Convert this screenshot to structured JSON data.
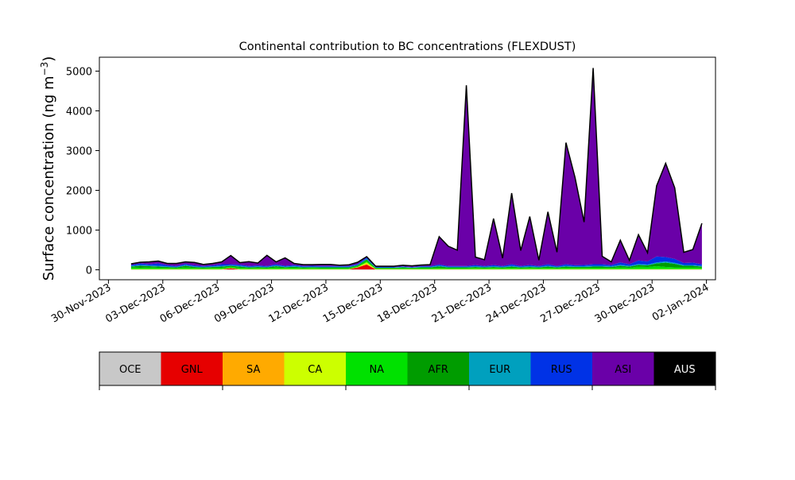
{
  "chart_data": {
    "type": "area",
    "title": "Continental contribution to BC concentrations (FLEXDUST)",
    "ylabel_main": "Surface concentration (ng m",
    "ylabel_sup": "−3",
    "ylabel_end": ")",
    "xlabel": "",
    "ylim": [
      -250,
      5350
    ],
    "yticks": [
      0,
      1000,
      2000,
      3000,
      4000,
      5000
    ],
    "x_axis_type": "date",
    "xlim": [
      "2023-11-29T12:00",
      "2024-01-02T12:00"
    ],
    "xticks": [
      {
        "date": "2023-11-30",
        "label": "30-Nov-2023"
      },
      {
        "date": "2023-12-03",
        "label": "03-Dec-2023"
      },
      {
        "date": "2023-12-06",
        "label": "06-Dec-2023"
      },
      {
        "date": "2023-12-09",
        "label": "09-Dec-2023"
      },
      {
        "date": "2023-12-12",
        "label": "12-Dec-2023"
      },
      {
        "date": "2023-12-15",
        "label": "15-Dec-2023"
      },
      {
        "date": "2023-12-18",
        "label": "18-Dec-2023"
      },
      {
        "date": "2023-12-21",
        "label": "21-Dec-2023"
      },
      {
        "date": "2023-12-24",
        "label": "24-Dec-2023"
      },
      {
        "date": "2023-12-27",
        "label": "27-Dec-2023"
      },
      {
        "date": "2023-12-30",
        "label": "30-Dec-2023"
      },
      {
        "date": "2024-01-02",
        "label": "02-Jan-2024"
      }
    ],
    "grid": false,
    "dates": [
      "2023-12-01T06:00",
      "2023-12-01T18:00",
      "2023-12-02T06:00",
      "2023-12-02T18:00",
      "2023-12-03T06:00",
      "2023-12-03T18:00",
      "2023-12-04T06:00",
      "2023-12-04T18:00",
      "2023-12-05T06:00",
      "2023-12-05T18:00",
      "2023-12-06T06:00",
      "2023-12-06T18:00",
      "2023-12-07T06:00",
      "2023-12-07T18:00",
      "2023-12-08T06:00",
      "2023-12-08T18:00",
      "2023-12-09T06:00",
      "2023-12-09T18:00",
      "2023-12-10T06:00",
      "2023-12-10T18:00",
      "2023-12-11T06:00",
      "2023-12-11T18:00",
      "2023-12-12T06:00",
      "2023-12-12T18:00",
      "2023-12-13T06:00",
      "2023-12-13T18:00",
      "2023-12-14T06:00",
      "2023-12-14T18:00",
      "2023-12-15T06:00",
      "2023-12-15T18:00",
      "2023-12-16T06:00",
      "2023-12-16T18:00",
      "2023-12-17T06:00",
      "2023-12-17T18:00",
      "2023-12-18T06:00",
      "2023-12-18T18:00",
      "2023-12-19T06:00",
      "2023-12-19T18:00",
      "2023-12-20T06:00",
      "2023-12-20T18:00",
      "2023-12-21T06:00",
      "2023-12-21T18:00",
      "2023-12-22T06:00",
      "2023-12-22T18:00",
      "2023-12-23T06:00",
      "2023-12-23T18:00",
      "2023-12-24T06:00",
      "2023-12-24T18:00",
      "2023-12-25T06:00",
      "2023-12-25T18:00",
      "2023-12-26T06:00",
      "2023-12-26T18:00",
      "2023-12-27T06:00",
      "2023-12-27T18:00",
      "2023-12-28T06:00",
      "2023-12-28T18:00",
      "2023-12-29T06:00",
      "2023-12-29T18:00",
      "2023-12-30T06:00",
      "2023-12-30T18:00",
      "2023-12-31T06:00",
      "2023-12-31T18:00",
      "2024-01-01T06:00",
      "2024-01-01T18:00"
    ],
    "series": [
      {
        "name": "OCE",
        "color": "#c8c8c8",
        "values": [
          10,
          10,
          10,
          10,
          10,
          10,
          10,
          10,
          10,
          10,
          10,
          10,
          10,
          10,
          10,
          10,
          10,
          10,
          10,
          10,
          10,
          10,
          10,
          10,
          10,
          10,
          10,
          10,
          10,
          10,
          10,
          10,
          10,
          10,
          10,
          10,
          10,
          10,
          10,
          10,
          10,
          10,
          10,
          10,
          10,
          10,
          10,
          10,
          10,
          10,
          10,
          10,
          10,
          10,
          10,
          10,
          10,
          10,
          10,
          10,
          10,
          10,
          10,
          10
        ]
      },
      {
        "name": "GNL",
        "color": "#e60000",
        "values": [
          0,
          0,
          0,
          0,
          0,
          0,
          0,
          0,
          0,
          0,
          0,
          30,
          0,
          0,
          0,
          0,
          0,
          0,
          0,
          0,
          0,
          0,
          0,
          0,
          0,
          50,
          120,
          0,
          0,
          0,
          0,
          0,
          0,
          0,
          0,
          0,
          0,
          0,
          0,
          0,
          0,
          0,
          0,
          0,
          0,
          0,
          0,
          0,
          0,
          0,
          0,
          0,
          0,
          0,
          0,
          0,
          0,
          0,
          0,
          0,
          0,
          0,
          0,
          0
        ]
      },
      {
        "name": "SA",
        "color": "#ffaa00",
        "values": [
          0,
          0,
          0,
          0,
          0,
          0,
          0,
          0,
          0,
          0,
          0,
          0,
          0,
          0,
          0,
          0,
          0,
          0,
          0,
          0,
          0,
          0,
          0,
          0,
          0,
          0,
          20,
          0,
          0,
          0,
          0,
          0,
          0,
          0,
          0,
          0,
          0,
          0,
          0,
          0,
          0,
          0,
          0,
          0,
          0,
          0,
          0,
          0,
          0,
          0,
          0,
          0,
          0,
          0,
          0,
          0,
          0,
          0,
          0,
          0,
          0,
          0,
          0,
          0
        ]
      },
      {
        "name": "CA",
        "color": "#ccff00",
        "values": [
          10,
          10,
          10,
          10,
          10,
          10,
          10,
          10,
          10,
          10,
          10,
          10,
          10,
          10,
          10,
          10,
          10,
          10,
          10,
          10,
          10,
          10,
          10,
          10,
          10,
          10,
          40,
          10,
          10,
          10,
          10,
          10,
          10,
          10,
          10,
          10,
          10,
          10,
          10,
          10,
          10,
          10,
          10,
          10,
          10,
          10,
          10,
          10,
          10,
          10,
          10,
          10,
          10,
          10,
          10,
          10,
          10,
          10,
          10,
          10,
          10,
          10,
          10,
          10
        ]
      },
      {
        "name": "NA",
        "color": "#00e100",
        "values": [
          40,
          30,
          40,
          30,
          25,
          20,
          40,
          25,
          20,
          25,
          30,
          25,
          30,
          20,
          25,
          20,
          35,
          25,
          30,
          20,
          25,
          20,
          20,
          20,
          20,
          20,
          40,
          15,
          15,
          15,
          20,
          15,
          20,
          20,
          25,
          20,
          20,
          20,
          25,
          20,
          25,
          20,
          30,
          20,
          25,
          20,
          30,
          20,
          30,
          25,
          25,
          30,
          30,
          25,
          40,
          30,
          60,
          50,
          70,
          50,
          40,
          40,
          40,
          30
        ]
      },
      {
        "name": "AFR",
        "color": "#009c00",
        "values": [
          20,
          50,
          30,
          30,
          25,
          20,
          40,
          25,
          20,
          25,
          30,
          25,
          30,
          20,
          25,
          20,
          35,
          20,
          25,
          20,
          20,
          20,
          20,
          20,
          20,
          20,
          30,
          15,
          15,
          15,
          20,
          15,
          20,
          20,
          40,
          20,
          20,
          20,
          25,
          20,
          25,
          20,
          30,
          20,
          25,
          20,
          30,
          20,
          30,
          25,
          25,
          30,
          30,
          25,
          40,
          30,
          40,
          40,
          70,
          110,
          90,
          40,
          40,
          30
        ]
      },
      {
        "name": "EUR",
        "color": "#00a0be",
        "values": [
          20,
          20,
          20,
          20,
          15,
          15,
          20,
          15,
          15,
          15,
          20,
          15,
          20,
          15,
          15,
          15,
          20,
          15,
          20,
          15,
          15,
          15,
          15,
          15,
          15,
          15,
          20,
          10,
          10,
          10,
          15,
          10,
          15,
          15,
          20,
          15,
          15,
          15,
          20,
          15,
          20,
          15,
          20,
          15,
          20,
          15,
          20,
          15,
          20,
          15,
          20,
          20,
          20,
          20,
          25,
          20,
          25,
          20,
          25,
          30,
          25,
          20,
          20,
          20
        ]
      },
      {
        "name": "RUS",
        "color": "#0032e6",
        "values": [
          20,
          40,
          30,
          60,
          30,
          20,
          30,
          25,
          20,
          25,
          40,
          25,
          30,
          20,
          25,
          20,
          30,
          20,
          25,
          20,
          20,
          20,
          20,
          20,
          20,
          20,
          30,
          10,
          10,
          10,
          10,
          10,
          15,
          15,
          30,
          20,
          20,
          20,
          30,
          20,
          30,
          20,
          40,
          20,
          30,
          20,
          40,
          20,
          40,
          30,
          30,
          40,
          40,
          30,
          60,
          40,
          90,
          80,
          150,
          110,
          100,
          50,
          60,
          40
        ]
      },
      {
        "name": "ASI",
        "color": "#6a00a8",
        "values": [
          30,
          30,
          60,
          60,
          45,
          65,
          50,
          75,
          40,
          50,
          60,
          220,
          50,
          110,
          60,
          270,
          60,
          200,
          40,
          35,
          30,
          40,
          40,
          20,
          30,
          45,
          20,
          20,
          20,
          20,
          30,
          30,
          30,
          40,
          700,
          500,
          400,
          4550,
          200,
          160,
          1170,
          200,
          1790,
          390,
          1220,
          150,
          1320,
          350,
          3060,
          2210,
          1080,
          4940,
          200,
          80,
          560,
          100,
          650,
          220,
          1780,
          2360,
          1790,
          270,
          330,
          1030
        ]
      },
      {
        "name": "AUS",
        "color": "#000000",
        "values": [
          0,
          0,
          0,
          0,
          0,
          0,
          0,
          0,
          0,
          0,
          0,
          0,
          0,
          0,
          0,
          0,
          0,
          0,
          0,
          0,
          0,
          0,
          0,
          0,
          0,
          0,
          0,
          0,
          0,
          0,
          0,
          0,
          0,
          0,
          0,
          0,
          0,
          0,
          0,
          0,
          0,
          0,
          0,
          0,
          0,
          0,
          0,
          0,
          0,
          0,
          0,
          0,
          0,
          0,
          0,
          0,
          0,
          0,
          0,
          0,
          0,
          0,
          0,
          0
        ]
      }
    ]
  }
}
